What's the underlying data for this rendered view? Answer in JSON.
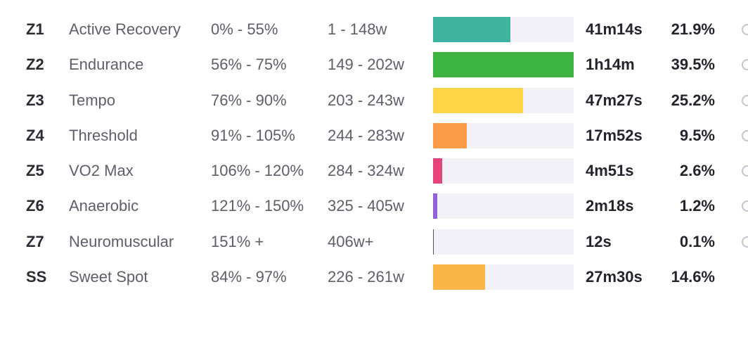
{
  "zones": [
    {
      "id": "Z1",
      "name": "Active Recovery",
      "pct": "0% - 55%",
      "watts": "1 - 148w",
      "time": "41m14s",
      "share": "21.9%",
      "fraction": 0.55,
      "color": "#3db3a0"
    },
    {
      "id": "Z2",
      "name": "Endurance",
      "pct": "56% - 75%",
      "watts": "149 - 202w",
      "time": "1h14m",
      "share": "39.5%",
      "fraction": 1.0,
      "color": "#3cb442"
    },
    {
      "id": "Z3",
      "name": "Tempo",
      "pct": "76% - 90%",
      "watts": "203 - 243w",
      "time": "47m27s",
      "share": "25.2%",
      "fraction": 0.64,
      "color": "#ffd648"
    },
    {
      "id": "Z4",
      "name": "Threshold",
      "pct": "91% - 105%",
      "watts": "244 - 283w",
      "time": "17m52s",
      "share": "9.5%",
      "fraction": 0.24,
      "color": "#fc9b48"
    },
    {
      "id": "Z5",
      "name": "VO2 Max",
      "pct": "106% - 120%",
      "watts": "284 - 324w",
      "time": "4m51s",
      "share": "2.6%",
      "fraction": 0.065,
      "color": "#e6437a"
    },
    {
      "id": "Z6",
      "name": "Anaerobic",
      "pct": "121% - 150%",
      "watts": "325 - 405w",
      "time": "2m18s",
      "share": "1.2%",
      "fraction": 0.03,
      "color": "#8f63d6"
    },
    {
      "id": "Z7",
      "name": "Neuromuscular",
      "pct": "151% +",
      "watts": "406w+",
      "time": "12s",
      "share": "0.1%",
      "fraction": 0.005,
      "color": "#5b4a7a"
    },
    {
      "id": "SS",
      "name": "Sweet Spot",
      "pct": "84% - 97%",
      "watts": "226 - 261w",
      "time": "27m30s",
      "share": "14.6%",
      "fraction": 0.37,
      "color": "#fcb648"
    }
  ],
  "track_color": "#f2f1f8"
}
